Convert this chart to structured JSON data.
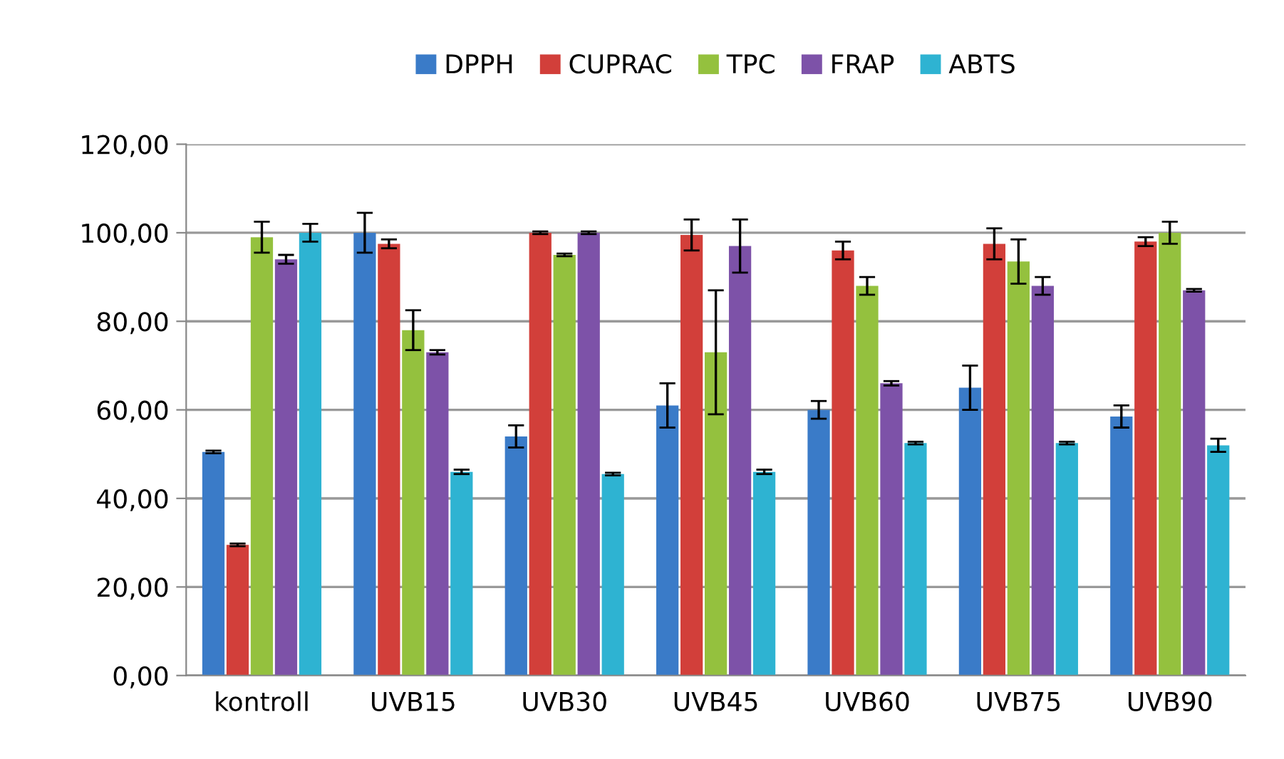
{
  "chart_data": {
    "type": "bar",
    "categories": [
      "kontroll",
      "UVB15",
      "UVB30",
      "UVB45",
      "UVB60",
      "UVB75",
      "UVB90"
    ],
    "series": [
      {
        "name": "DPPH",
        "color": "#3a7bc8",
        "values": [
          50.5,
          100,
          54,
          61,
          60,
          65,
          58.5
        ],
        "errors": [
          0.3,
          4.5,
          2.5,
          5,
          2,
          5,
          2.5
        ]
      },
      {
        "name": "CUPRAC",
        "color": "#d23f3a",
        "values": [
          29.5,
          97.5,
          100,
          99.5,
          96,
          97.5,
          98
        ],
        "errors": [
          0.3,
          1,
          0.3,
          3.5,
          2,
          3.5,
          1
        ]
      },
      {
        "name": "TPC",
        "color": "#94c13e",
        "values": [
          99,
          78,
          95,
          73,
          88,
          93.5,
          100
        ],
        "errors": [
          3.5,
          4.5,
          0.3,
          14,
          2,
          5,
          2.5
        ]
      },
      {
        "name": "FRAP",
        "color": "#7d52a8",
        "values": [
          94,
          73,
          100,
          97,
          66,
          88,
          87
        ],
        "errors": [
          1,
          0.5,
          0.3,
          6,
          0.5,
          2,
          0.3
        ]
      },
      {
        "name": "ABTS",
        "color": "#2eb3d2",
        "values": [
          100,
          46,
          45.5,
          46,
          52.5,
          52.5,
          52
        ],
        "errors": [
          2,
          0.5,
          0.3,
          0.5,
          0.3,
          0.3,
          1.5
        ]
      }
    ],
    "ylim": [
      0,
      120
    ],
    "yticks": [
      {
        "value": 0,
        "label": "0,00"
      },
      {
        "value": 20,
        "label": "20,00"
      },
      {
        "value": 40,
        "label": "40,00"
      },
      {
        "value": 60,
        "label": "60,00"
      },
      {
        "value": 80,
        "label": "80,00"
      },
      {
        "value": 100,
        "label": "100,00"
      },
      {
        "value": 120,
        "label": "120,00"
      }
    ],
    "grid": "y",
    "legend": "top"
  }
}
